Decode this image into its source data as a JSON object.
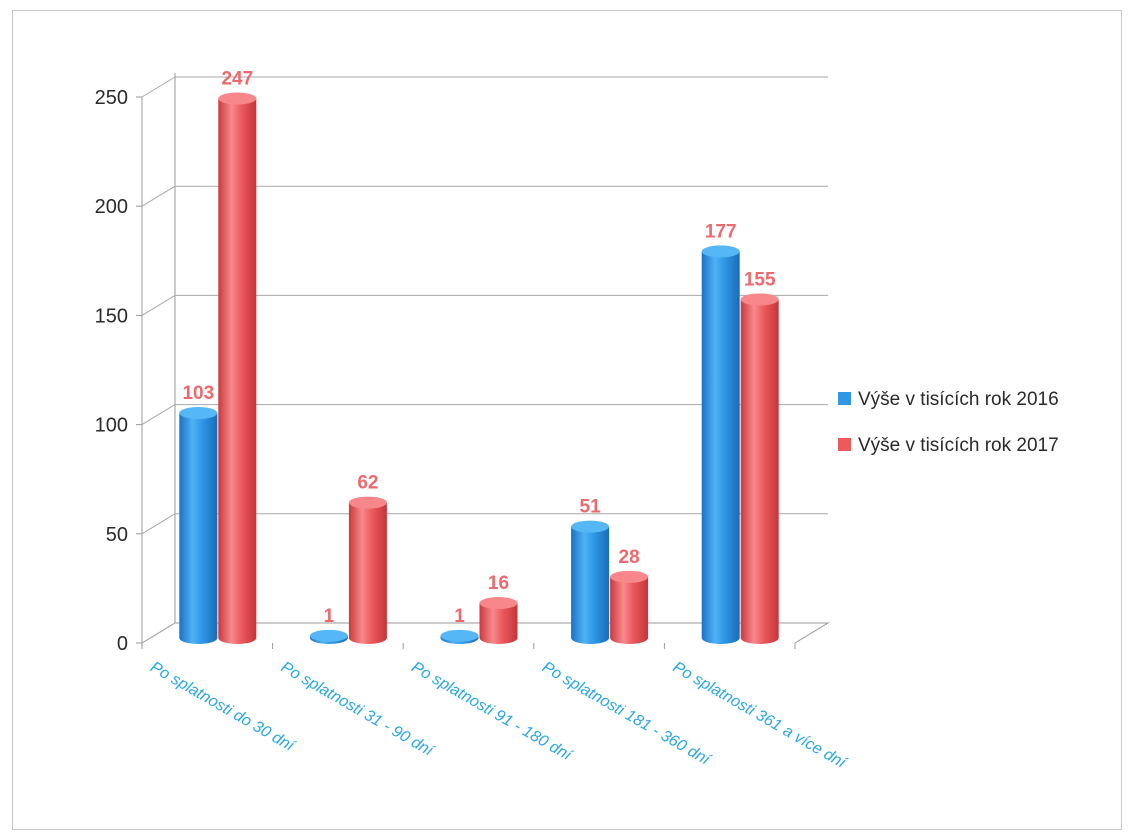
{
  "chart_data": {
    "type": "bar",
    "categories": [
      "Po splatnosti do 30 dní",
      "Po splatnosti  31 - 90 dní",
      "Po splatnosti 91 - 180 dní",
      "Po splatnosti  181 - 360 dní",
      "Po splatnosti 361 a více dní"
    ],
    "series": [
      {
        "name": "Výše v  tisících rok 2016",
        "values": [
          103,
          1,
          1,
          51,
          177
        ],
        "color": "#2e97e6"
      },
      {
        "name": "Výše v  tisících rok 2017",
        "values": [
          247,
          62,
          16,
          28,
          155
        ],
        "color": "#ec5a5e"
      }
    ],
    "y_ticks": [
      0,
      50,
      100,
      150,
      200,
      250
    ],
    "ylim": [
      0,
      250
    ],
    "grid": true,
    "legend_position": "right",
    "category_label_color": "#29a8e0",
    "data_label_color": "#ec6a6e"
  }
}
